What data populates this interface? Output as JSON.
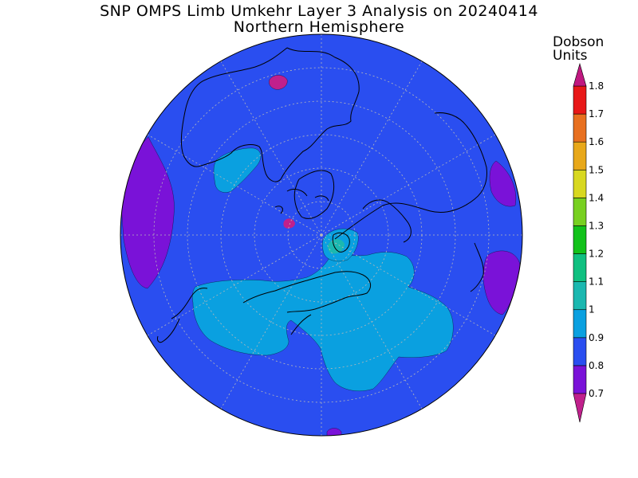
{
  "title": "SNP OMPS Limb Umkehr Layer 3 Analysis on 20240414",
  "subtitle": "Northern Hemisphere",
  "colorbar": {
    "title_line1": "Dobson",
    "title_line2": "Units",
    "ticks": [
      "0.7",
      "0.8",
      "0.9",
      "1",
      "1.1",
      "1.2",
      "1.3",
      "1.4",
      "1.5",
      "1.6",
      "1.7",
      "1.8"
    ],
    "colors": [
      "#7a12d8",
      "#2a4ef0",
      "#0aa0e0",
      "#1bb8b0",
      "#10c080",
      "#12c21a",
      "#78d020",
      "#d8d820",
      "#e8a81a",
      "#e87020",
      "#e81818"
    ],
    "under_color": "#c0208c",
    "over_color": "#c01880"
  },
  "map": {
    "projection": "north polar stereographic",
    "background_value_color": "#2a4ef0"
  }
}
